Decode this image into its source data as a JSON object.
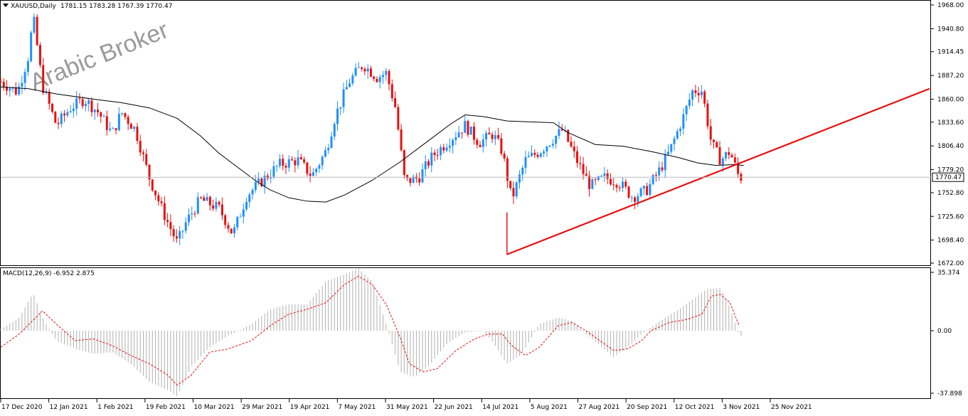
{
  "window": {
    "symbol_label": "XAUUSD,Daily",
    "ohlc_label": "1781.15 1783.28 1767.39 1770.47",
    "watermark": "Arabic Broker",
    "menu_icon": "triangle-down-icon"
  },
  "colors": {
    "bull": "#1e90ff",
    "bear": "#e81010",
    "ma": "#000000",
    "trendline": "#e81010",
    "price_line": "#b8b8b8",
    "macd_hist": "#b0b0b0",
    "macd_signal": "#e81010",
    "current_price_box": "#ffffff"
  },
  "price_axis": {
    "ticks": [
      "1968.00",
      "1940.80",
      "1914.45",
      "1887.20",
      "1860.00",
      "1833.60",
      "1806.40",
      "1779.20",
      "1752.80",
      "1725.60",
      "1698.40",
      "1672.00"
    ],
    "current_price": "1770.47"
  },
  "macd_panel": {
    "label": "MACD(12,26,9) -6.952 2.875",
    "ticks": [
      "35.374",
      "0.00",
      "-37.898"
    ]
  },
  "time_axis": {
    "labels": [
      "17 Dec 2020",
      "12 Jan 2021",
      "1 Feb 2021",
      "19 Feb 2021",
      "10 Mar 2021",
      "29 Mar 2021",
      "19 Apr 2021",
      "7 May 2021",
      "31 May 2021",
      "22 Jun 2021",
      "14 Jul 2021",
      "5 Aug 2021",
      "27 Aug 2021",
      "20 Sep 2021",
      "12 Oct 2021",
      "3 Nov 2021",
      "25 Nov 2021"
    ]
  },
  "chart_data": {
    "type": "candlestick",
    "symbol": "XAUUSD",
    "timeframe": "Daily",
    "ylim": [
      1672.0,
      1968.0
    ],
    "trendline": {
      "from_date": "5 Aug 2021",
      "from_price": 1682,
      "to_price_at_right_edge": 1872
    },
    "moving_average_points": [
      [
        0,
        1874
      ],
      [
        0.03,
        1872
      ],
      [
        0.06,
        1866
      ],
      [
        0.1,
        1860
      ],
      [
        0.13,
        1856
      ],
      [
        0.16,
        1850
      ],
      [
        0.19,
        1838
      ],
      [
        0.215,
        1818
      ],
      [
        0.235,
        1798
      ],
      [
        0.255,
        1782
      ],
      [
        0.275,
        1766
      ],
      [
        0.29,
        1756
      ],
      [
        0.31,
        1747
      ],
      [
        0.33,
        1743
      ],
      [
        0.35,
        1742
      ],
      [
        0.37,
        1750
      ],
      [
        0.4,
        1767
      ],
      [
        0.43,
        1788
      ],
      [
        0.46,
        1812
      ],
      [
        0.485,
        1832
      ],
      [
        0.5,
        1842
      ],
      [
        0.52,
        1840
      ],
      [
        0.545,
        1835
      ],
      [
        0.57,
        1834
      ],
      [
        0.595,
        1833
      ],
      [
        0.61,
        1822
      ],
      [
        0.64,
        1808
      ],
      [
        0.67,
        1806
      ],
      [
        0.7,
        1800
      ],
      [
        0.73,
        1793
      ],
      [
        0.75,
        1787
      ],
      [
        0.77,
        1784
      ],
      [
        0.79,
        1785
      ],
      [
        0.8,
        1784
      ]
    ],
    "macd": {
      "ylim": [
        -37.898,
        35.374
      ],
      "signal_points": [
        [
          0,
          -10
        ],
        [
          0.02,
          -2
        ],
        [
          0.045,
          12
        ],
        [
          0.06,
          4
        ],
        [
          0.08,
          -6
        ],
        [
          0.1,
          -5
        ],
        [
          0.12,
          -9
        ],
        [
          0.14,
          -15
        ],
        [
          0.16,
          -20
        ],
        [
          0.18,
          -27
        ],
        [
          0.19,
          -33
        ],
        [
          0.205,
          -27
        ],
        [
          0.225,
          -13
        ],
        [
          0.245,
          -11
        ],
        [
          0.27,
          -6
        ],
        [
          0.29,
          3
        ],
        [
          0.31,
          10
        ],
        [
          0.33,
          13
        ],
        [
          0.35,
          17
        ],
        [
          0.37,
          28
        ],
        [
          0.385,
          33
        ],
        [
          0.4,
          28
        ],
        [
          0.415,
          16
        ],
        [
          0.43,
          -4
        ],
        [
          0.44,
          -20
        ],
        [
          0.455,
          -25
        ],
        [
          0.47,
          -23
        ],
        [
          0.49,
          -12
        ],
        [
          0.51,
          -5
        ],
        [
          0.525,
          -2
        ],
        [
          0.54,
          -2
        ],
        [
          0.55,
          -9
        ],
        [
          0.565,
          -15
        ],
        [
          0.58,
          -10
        ],
        [
          0.6,
          3
        ],
        [
          0.615,
          5
        ],
        [
          0.63,
          0
        ],
        [
          0.645,
          -6
        ],
        [
          0.66,
          -12
        ],
        [
          0.675,
          -11
        ],
        [
          0.69,
          -6
        ],
        [
          0.7,
          0
        ],
        [
          0.72,
          5
        ],
        [
          0.74,
          7
        ],
        [
          0.755,
          10
        ],
        [
          0.765,
          21
        ],
        [
          0.775,
          22
        ],
        [
          0.785,
          17
        ],
        [
          0.795,
          3
        ]
      ],
      "histogram_points": [
        [
          0,
          1
        ],
        [
          0.02,
          8
        ],
        [
          0.035,
          23
        ],
        [
          0.045,
          8
        ],
        [
          0.06,
          -6
        ],
        [
          0.08,
          -11
        ],
        [
          0.1,
          -14
        ],
        [
          0.12,
          -13
        ],
        [
          0.14,
          -20
        ],
        [
          0.16,
          -31
        ],
        [
          0.18,
          -36
        ],
        [
          0.19,
          -40
        ],
        [
          0.205,
          -22
        ],
        [
          0.225,
          -10
        ],
        [
          0.245,
          -3
        ],
        [
          0.27,
          4
        ],
        [
          0.29,
          13
        ],
        [
          0.31,
          16
        ],
        [
          0.33,
          16
        ],
        [
          0.35,
          30
        ],
        [
          0.37,
          34
        ],
        [
          0.385,
          38
        ],
        [
          0.4,
          30
        ],
        [
          0.415,
          4
        ],
        [
          0.43,
          -25
        ],
        [
          0.445,
          -28
        ],
        [
          0.46,
          -22
        ],
        [
          0.48,
          -8
        ],
        [
          0.5,
          -1
        ],
        [
          0.52,
          0
        ],
        [
          0.53,
          -7
        ],
        [
          0.545,
          -20
        ],
        [
          0.56,
          -15
        ],
        [
          0.58,
          4
        ],
        [
          0.6,
          8
        ],
        [
          0.615,
          6
        ],
        [
          0.63,
          -2
        ],
        [
          0.645,
          -9
        ],
        [
          0.66,
          -16
        ],
        [
          0.675,
          -10
        ],
        [
          0.69,
          -2
        ],
        [
          0.71,
          6
        ],
        [
          0.73,
          13
        ],
        [
          0.745,
          19
        ],
        [
          0.76,
          25
        ],
        [
          0.775,
          26
        ],
        [
          0.785,
          14
        ],
        [
          0.795,
          -3
        ]
      ]
    }
  }
}
